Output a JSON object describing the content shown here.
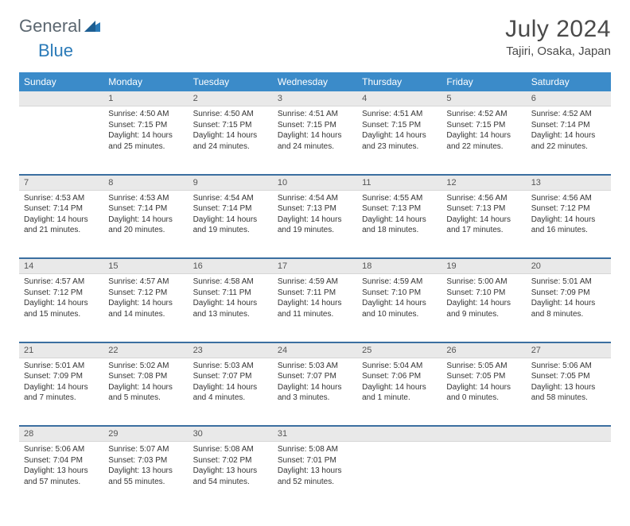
{
  "logo": {
    "part1": "General",
    "part2": "Blue"
  },
  "title": "July 2024",
  "location": "Tajiri, Osaka, Japan",
  "colors": {
    "header_bg": "#3b8bc9",
    "header_text": "#ffffff",
    "daynum_bg": "#e9e9e9",
    "row_divider": "#3b6fa0",
    "logo_gray": "#5c6770",
    "logo_blue": "#2a7ab8"
  },
  "day_headers": [
    "Sunday",
    "Monday",
    "Tuesday",
    "Wednesday",
    "Thursday",
    "Friday",
    "Saturday"
  ],
  "weeks": [
    {
      "nums": [
        "",
        "1",
        "2",
        "3",
        "4",
        "5",
        "6"
      ],
      "cells": [
        null,
        {
          "sunrise": "4:50 AM",
          "sunset": "7:15 PM",
          "daylight": "14 hours and 25 minutes."
        },
        {
          "sunrise": "4:50 AM",
          "sunset": "7:15 PM",
          "daylight": "14 hours and 24 minutes."
        },
        {
          "sunrise": "4:51 AM",
          "sunset": "7:15 PM",
          "daylight": "14 hours and 24 minutes."
        },
        {
          "sunrise": "4:51 AM",
          "sunset": "7:15 PM",
          "daylight": "14 hours and 23 minutes."
        },
        {
          "sunrise": "4:52 AM",
          "sunset": "7:15 PM",
          "daylight": "14 hours and 22 minutes."
        },
        {
          "sunrise": "4:52 AM",
          "sunset": "7:14 PM",
          "daylight": "14 hours and 22 minutes."
        }
      ]
    },
    {
      "nums": [
        "7",
        "8",
        "9",
        "10",
        "11",
        "12",
        "13"
      ],
      "cells": [
        {
          "sunrise": "4:53 AM",
          "sunset": "7:14 PM",
          "daylight": "14 hours and 21 minutes."
        },
        {
          "sunrise": "4:53 AM",
          "sunset": "7:14 PM",
          "daylight": "14 hours and 20 minutes."
        },
        {
          "sunrise": "4:54 AM",
          "sunset": "7:14 PM",
          "daylight": "14 hours and 19 minutes."
        },
        {
          "sunrise": "4:54 AM",
          "sunset": "7:13 PM",
          "daylight": "14 hours and 19 minutes."
        },
        {
          "sunrise": "4:55 AM",
          "sunset": "7:13 PM",
          "daylight": "14 hours and 18 minutes."
        },
        {
          "sunrise": "4:56 AM",
          "sunset": "7:13 PM",
          "daylight": "14 hours and 17 minutes."
        },
        {
          "sunrise": "4:56 AM",
          "sunset": "7:12 PM",
          "daylight": "14 hours and 16 minutes."
        }
      ]
    },
    {
      "nums": [
        "14",
        "15",
        "16",
        "17",
        "18",
        "19",
        "20"
      ],
      "cells": [
        {
          "sunrise": "4:57 AM",
          "sunset": "7:12 PM",
          "daylight": "14 hours and 15 minutes."
        },
        {
          "sunrise": "4:57 AM",
          "sunset": "7:12 PM",
          "daylight": "14 hours and 14 minutes."
        },
        {
          "sunrise": "4:58 AM",
          "sunset": "7:11 PM",
          "daylight": "14 hours and 13 minutes."
        },
        {
          "sunrise": "4:59 AM",
          "sunset": "7:11 PM",
          "daylight": "14 hours and 11 minutes."
        },
        {
          "sunrise": "4:59 AM",
          "sunset": "7:10 PM",
          "daylight": "14 hours and 10 minutes."
        },
        {
          "sunrise": "5:00 AM",
          "sunset": "7:10 PM",
          "daylight": "14 hours and 9 minutes."
        },
        {
          "sunrise": "5:01 AM",
          "sunset": "7:09 PM",
          "daylight": "14 hours and 8 minutes."
        }
      ]
    },
    {
      "nums": [
        "21",
        "22",
        "23",
        "24",
        "25",
        "26",
        "27"
      ],
      "cells": [
        {
          "sunrise": "5:01 AM",
          "sunset": "7:09 PM",
          "daylight": "14 hours and 7 minutes."
        },
        {
          "sunrise": "5:02 AM",
          "sunset": "7:08 PM",
          "daylight": "14 hours and 5 minutes."
        },
        {
          "sunrise": "5:03 AM",
          "sunset": "7:07 PM",
          "daylight": "14 hours and 4 minutes."
        },
        {
          "sunrise": "5:03 AM",
          "sunset": "7:07 PM",
          "daylight": "14 hours and 3 minutes."
        },
        {
          "sunrise": "5:04 AM",
          "sunset": "7:06 PM",
          "daylight": "14 hours and 1 minute."
        },
        {
          "sunrise": "5:05 AM",
          "sunset": "7:05 PM",
          "daylight": "14 hours and 0 minutes."
        },
        {
          "sunrise": "5:06 AM",
          "sunset": "7:05 PM",
          "daylight": "13 hours and 58 minutes."
        }
      ]
    },
    {
      "nums": [
        "28",
        "29",
        "30",
        "31",
        "",
        "",
        ""
      ],
      "cells": [
        {
          "sunrise": "5:06 AM",
          "sunset": "7:04 PM",
          "daylight": "13 hours and 57 minutes."
        },
        {
          "sunrise": "5:07 AM",
          "sunset": "7:03 PM",
          "daylight": "13 hours and 55 minutes."
        },
        {
          "sunrise": "5:08 AM",
          "sunset": "7:02 PM",
          "daylight": "13 hours and 54 minutes."
        },
        {
          "sunrise": "5:08 AM",
          "sunset": "7:01 PM",
          "daylight": "13 hours and 52 minutes."
        },
        null,
        null,
        null
      ]
    }
  ],
  "labels": {
    "sunrise": "Sunrise:",
    "sunset": "Sunset:",
    "daylight": "Daylight:"
  }
}
